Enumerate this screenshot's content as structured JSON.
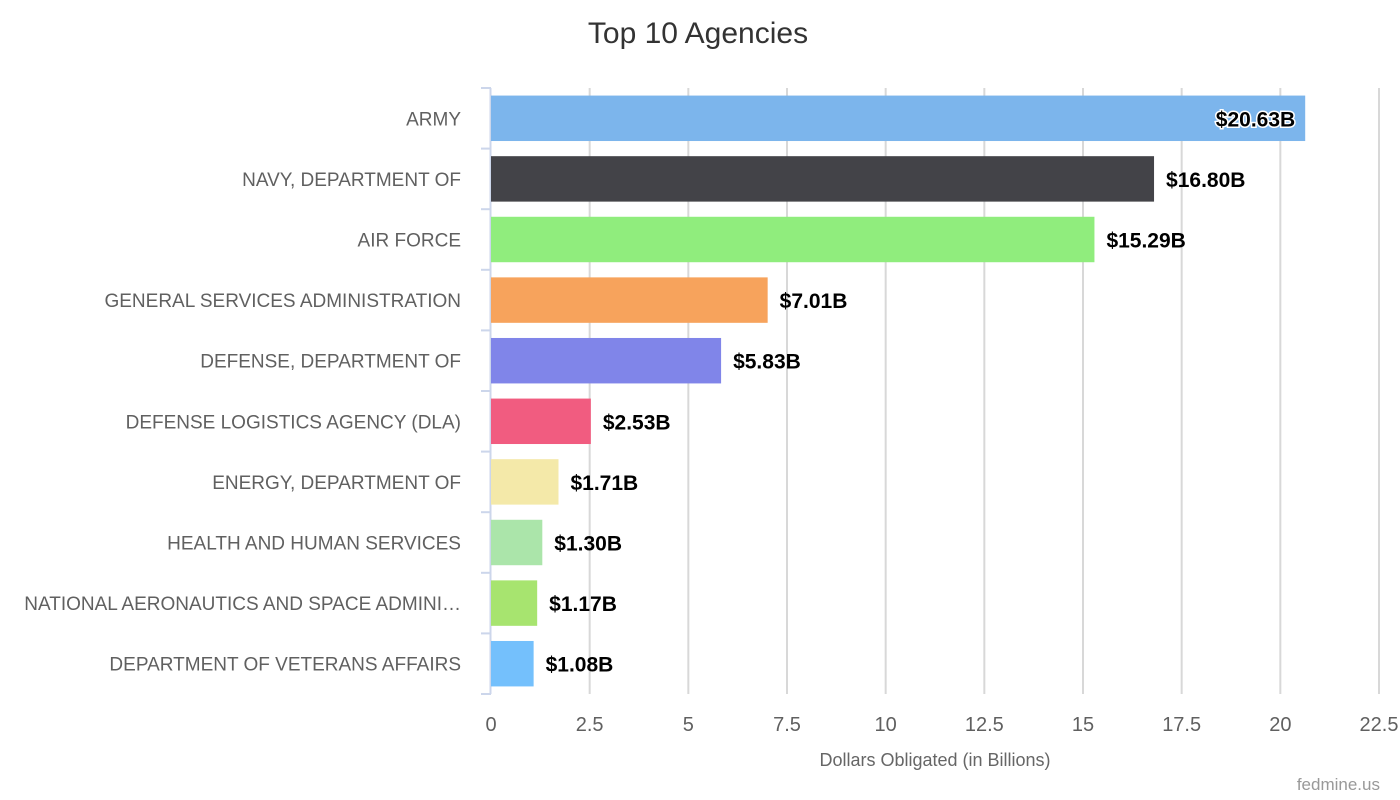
{
  "chart_data": {
    "type": "bar",
    "orientation": "horizontal",
    "title": "Top 10 Agencies",
    "xlabel": "Dollars Obligated (in Billions)",
    "ylabel": "",
    "xlim": [
      0,
      22.5
    ],
    "ticks": [
      0,
      2.5,
      5,
      7.5,
      10,
      12.5,
      15,
      17.5,
      20,
      22.5
    ],
    "tick_labels": [
      "0",
      "2.5",
      "5",
      "7.5",
      "10",
      "12.5",
      "15",
      "17.5",
      "20",
      "22.5"
    ],
    "grid": true,
    "categories": [
      "ARMY",
      "NAVY, DEPARTMENT OF",
      "AIR FORCE",
      "GENERAL SERVICES ADMINISTRATION",
      "DEFENSE, DEPARTMENT OF",
      "DEFENSE LOGISTICS AGENCY (DLA)",
      "ENERGY, DEPARTMENT OF",
      "HEALTH AND HUMAN SERVICES",
      "NATIONAL AERONAUTICS AND SPACE ADMINI…",
      "DEPARTMENT OF VETERANS AFFAIRS"
    ],
    "values": [
      20.63,
      16.8,
      15.29,
      7.01,
      5.83,
      2.53,
      1.71,
      1.3,
      1.17,
      1.08
    ],
    "data_labels": [
      "$20.63B",
      "$16.80B",
      "$15.29B",
      "$7.01B",
      "$5.83B",
      "$2.53B",
      "$1.71B",
      "$1.30B",
      "$1.17B",
      "$1.08B"
    ],
    "colors": [
      "#7cb5ec",
      "#434348",
      "#90ed7d",
      "#f7a35c",
      "#8085e9",
      "#f15c80",
      "#f4e9a9",
      "#abe5aa",
      "#a7e46f",
      "#74c0fc"
    ]
  },
  "credits": "fedmine.us"
}
